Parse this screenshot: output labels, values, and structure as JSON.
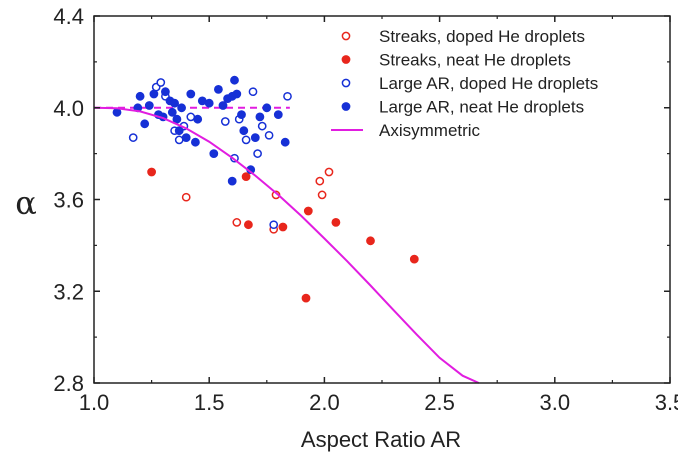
{
  "chart_data": {
    "type": "scatter",
    "xlabel": "Aspect Ratio AR",
    "ylabel": "α",
    "xlim": [
      1.0,
      3.5
    ],
    "ylim": [
      2.8,
      4.4
    ],
    "xticks": [
      "1.0",
      "1.5",
      "2.0",
      "2.5",
      "3.0",
      "3.5"
    ],
    "yticks": [
      "2.8",
      "3.2",
      "3.6",
      "4.0",
      "4.4"
    ],
    "grid": false,
    "legend_position": "top-right",
    "series": [
      {
        "name": "Streaks, doped He droplets",
        "color": "#e8261c",
        "marker": "open-circle",
        "points": [
          [
            1.4,
            3.61
          ],
          [
            1.62,
            3.5
          ],
          [
            1.78,
            3.47
          ],
          [
            1.79,
            3.62
          ],
          [
            1.98,
            3.68
          ],
          [
            1.99,
            3.62
          ],
          [
            2.02,
            3.72
          ]
        ]
      },
      {
        "name": "Streaks, neat He droplets",
        "color": "#e8261c",
        "marker": "filled-circle",
        "points": [
          [
            1.25,
            3.72
          ],
          [
            1.66,
            3.7
          ],
          [
            1.67,
            3.49
          ],
          [
            1.82,
            3.48
          ],
          [
            1.93,
            3.55
          ],
          [
            1.92,
            3.17
          ],
          [
            2.05,
            3.5
          ],
          [
            2.2,
            3.42
          ],
          [
            2.39,
            3.34
          ]
        ]
      },
      {
        "name": "Large AR, doped He droplets",
        "color": "#1630d6",
        "marker": "open-circle",
        "points": [
          [
            1.17,
            3.87
          ],
          [
            1.27,
            4.09
          ],
          [
            1.29,
            4.11
          ],
          [
            1.31,
            4.05
          ],
          [
            1.35,
            3.9
          ],
          [
            1.37,
            3.86
          ],
          [
            1.39,
            3.92
          ],
          [
            1.42,
            3.96
          ],
          [
            1.57,
            3.94
          ],
          [
            1.61,
            3.78
          ],
          [
            1.63,
            3.95
          ],
          [
            1.66,
            3.86
          ],
          [
            1.69,
            4.07
          ],
          [
            1.71,
            3.8
          ],
          [
            1.73,
            3.92
          ],
          [
            1.76,
            3.88
          ],
          [
            1.78,
            3.49
          ],
          [
            1.84,
            4.05
          ]
        ]
      },
      {
        "name": "Large AR, neat He droplets",
        "color": "#1630d6",
        "marker": "filled-circle",
        "points": [
          [
            1.1,
            3.98
          ],
          [
            1.19,
            4.0
          ],
          [
            1.2,
            4.05
          ],
          [
            1.22,
            3.93
          ],
          [
            1.24,
            4.01
          ],
          [
            1.26,
            4.06
          ],
          [
            1.28,
            3.97
          ],
          [
            1.3,
            3.96
          ],
          [
            1.31,
            4.07
          ],
          [
            1.33,
            4.03
          ],
          [
            1.34,
            3.98
          ],
          [
            1.35,
            4.02
          ],
          [
            1.36,
            3.95
          ],
          [
            1.37,
            3.9
          ],
          [
            1.38,
            4.0
          ],
          [
            1.4,
            3.87
          ],
          [
            1.42,
            4.06
          ],
          [
            1.44,
            3.85
          ],
          [
            1.45,
            3.95
          ],
          [
            1.47,
            4.03
          ],
          [
            1.5,
            4.02
          ],
          [
            1.52,
            3.8
          ],
          [
            1.54,
            4.08
          ],
          [
            1.56,
            4.01
          ],
          [
            1.58,
            4.04
          ],
          [
            1.6,
            4.05
          ],
          [
            1.61,
            4.12
          ],
          [
            1.62,
            4.06
          ],
          [
            1.6,
            3.68
          ],
          [
            1.64,
            3.97
          ],
          [
            1.65,
            3.9
          ],
          [
            1.68,
            3.73
          ],
          [
            1.7,
            3.87
          ],
          [
            1.72,
            3.96
          ],
          [
            1.75,
            4.0
          ],
          [
            1.8,
            3.97
          ],
          [
            1.83,
            3.85
          ]
        ]
      },
      {
        "name": "Axisymmetric",
        "color": "#e11de0",
        "marker": "line",
        "points": [
          [
            1.0,
            4.0
          ],
          [
            1.1,
            3.998
          ],
          [
            1.2,
            3.984
          ],
          [
            1.3,
            3.955
          ],
          [
            1.4,
            3.91
          ],
          [
            1.5,
            3.852
          ],
          [
            1.6,
            3.782
          ],
          [
            1.7,
            3.704
          ],
          [
            1.8,
            3.62
          ],
          [
            1.9,
            3.528
          ],
          [
            2.0,
            3.43
          ],
          [
            2.1,
            3.33
          ],
          [
            2.2,
            3.225
          ],
          [
            2.3,
            3.118
          ],
          [
            2.4,
            3.012
          ],
          [
            2.5,
            2.91
          ],
          [
            2.6,
            2.832
          ],
          [
            2.67,
            2.8
          ]
        ]
      }
    ],
    "reference_line": {
      "y": 4.0,
      "x_range": [
        1.0,
        1.85
      ],
      "color": "#e11de0",
      "style": "dashed"
    }
  }
}
